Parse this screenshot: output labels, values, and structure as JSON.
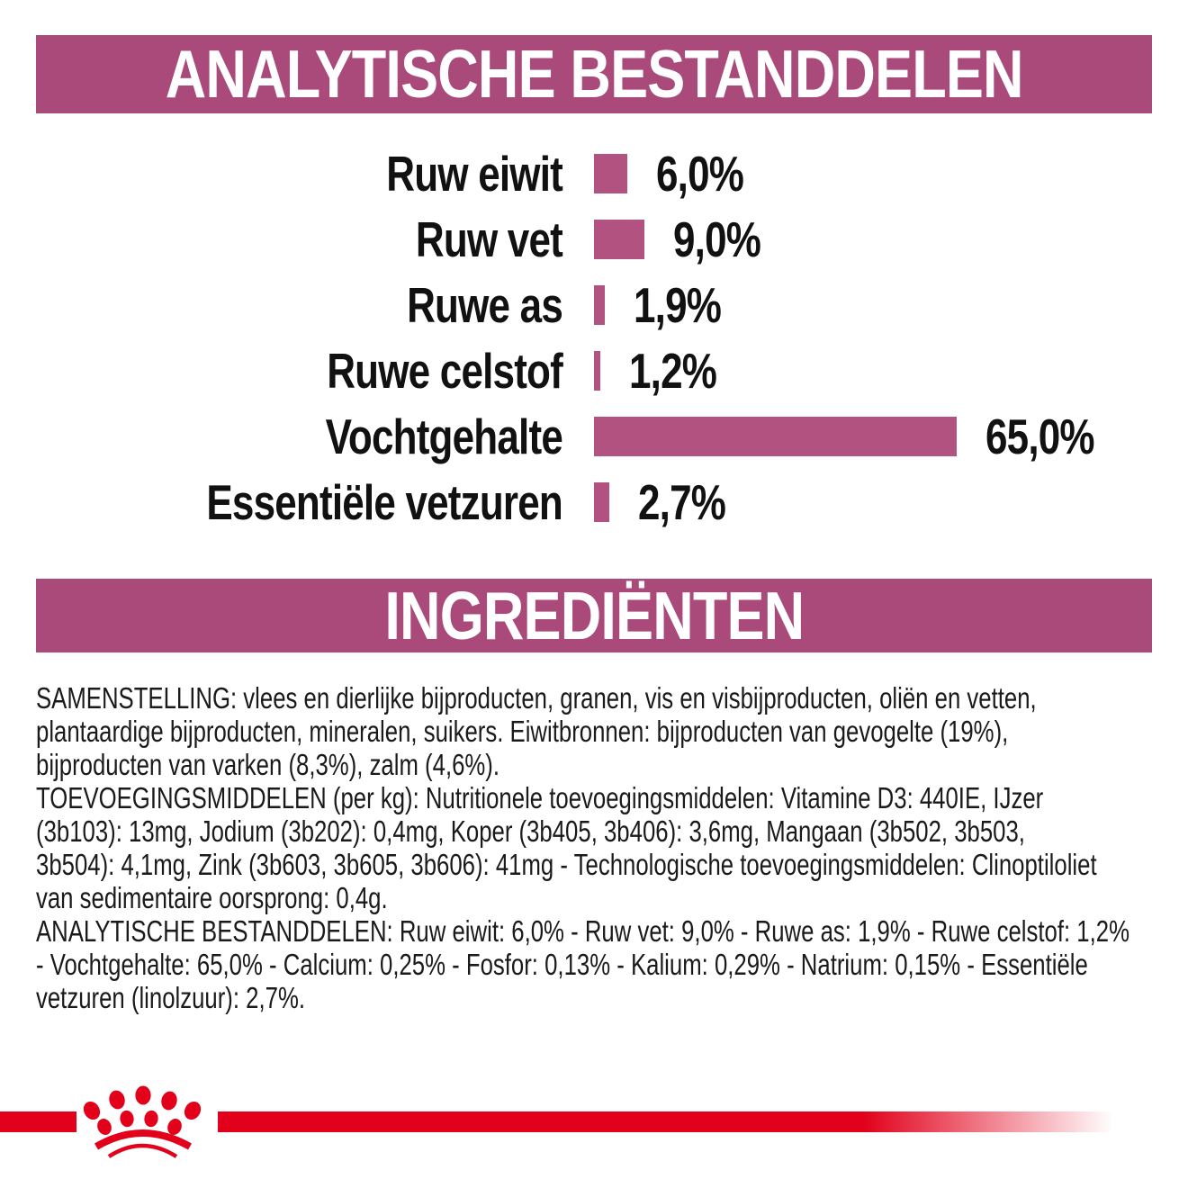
{
  "colors": {
    "banner_bg": "#a94a7a",
    "bar_color": "#b25281",
    "brand_red": "#e2001a",
    "text": "#1a1a1a"
  },
  "headers": {
    "analytical": "ANALYTISCHE BESTANDDELEN",
    "ingredients": "INGREDIËNTEN"
  },
  "chart_data": {
    "type": "bar",
    "orientation": "horizontal",
    "title": "ANALYTISCHE BESTANDDELEN",
    "categories": [
      "Ruw eiwit",
      "Ruw vet",
      "Ruwe as",
      "Ruwe celstof",
      "Vochtgehalte",
      "Essentiële vetzuren"
    ],
    "values": [
      6.0,
      9.0,
      1.9,
      1.2,
      65.0,
      2.7
    ],
    "value_labels": [
      "6,0%",
      "9,0%",
      "1,9%",
      "1,2%",
      "65,0%",
      "2,7%"
    ],
    "unit": "%",
    "xlim": [
      0,
      100
    ],
    "grid": false,
    "axis_shown": false,
    "bar_color": "#b25281"
  },
  "ingredients": {
    "paragraphs": [
      {
        "name": "samenstelling",
        "lines": [
          "SAMENSTELLING: vlees en dierlijke bijproducten, granen, vis en visbijproducten, oliën en vetten,",
          "plantaardige bijproducten, mineralen, suikers. Eiwitbronnen: bijproducten van gevogelte (19%),",
          "bijproducten van varken (8,3%), zalm (4,6%)."
        ]
      },
      {
        "name": "toevoegingsmiddelen",
        "lines": [
          "TOEVOEGINGSMIDDELEN (per kg): Nutritionele toevoegingsmiddelen: Vitamine D3: 440IE, IJzer",
          "(3b103): 13mg, Jodium (3b202): 0,4mg, Koper (3b405, 3b406): 3,6mg, Mangaan (3b502, 3b503,",
          "3b504): 4,1mg, Zink (3b603, 3b605, 3b606): 41mg - Technologische toevoegingsmiddelen: Clinoptiloliet",
          "van sedimentaire oorsprong: 0,4g."
        ]
      },
      {
        "name": "analytische_bestanddelen",
        "lines": [
          "ANALYTISCHE BESTANDDELEN: Ruw eiwit: 6,0% - Ruw vet: 9,0% - Ruwe as: 1,9% - Ruwe celstof: 1,2%",
          "- Vochtgehalte: 65,0% - Calcium: 0,25% - Fosfor: 0,13% - Kalium: 0,29% - Natrium: 0,15% - Essentiële",
          "vetzuren (linolzuur): 2,7%."
        ]
      }
    ]
  },
  "footer": {
    "logo_icon": "royal-canin-crown-icon"
  }
}
